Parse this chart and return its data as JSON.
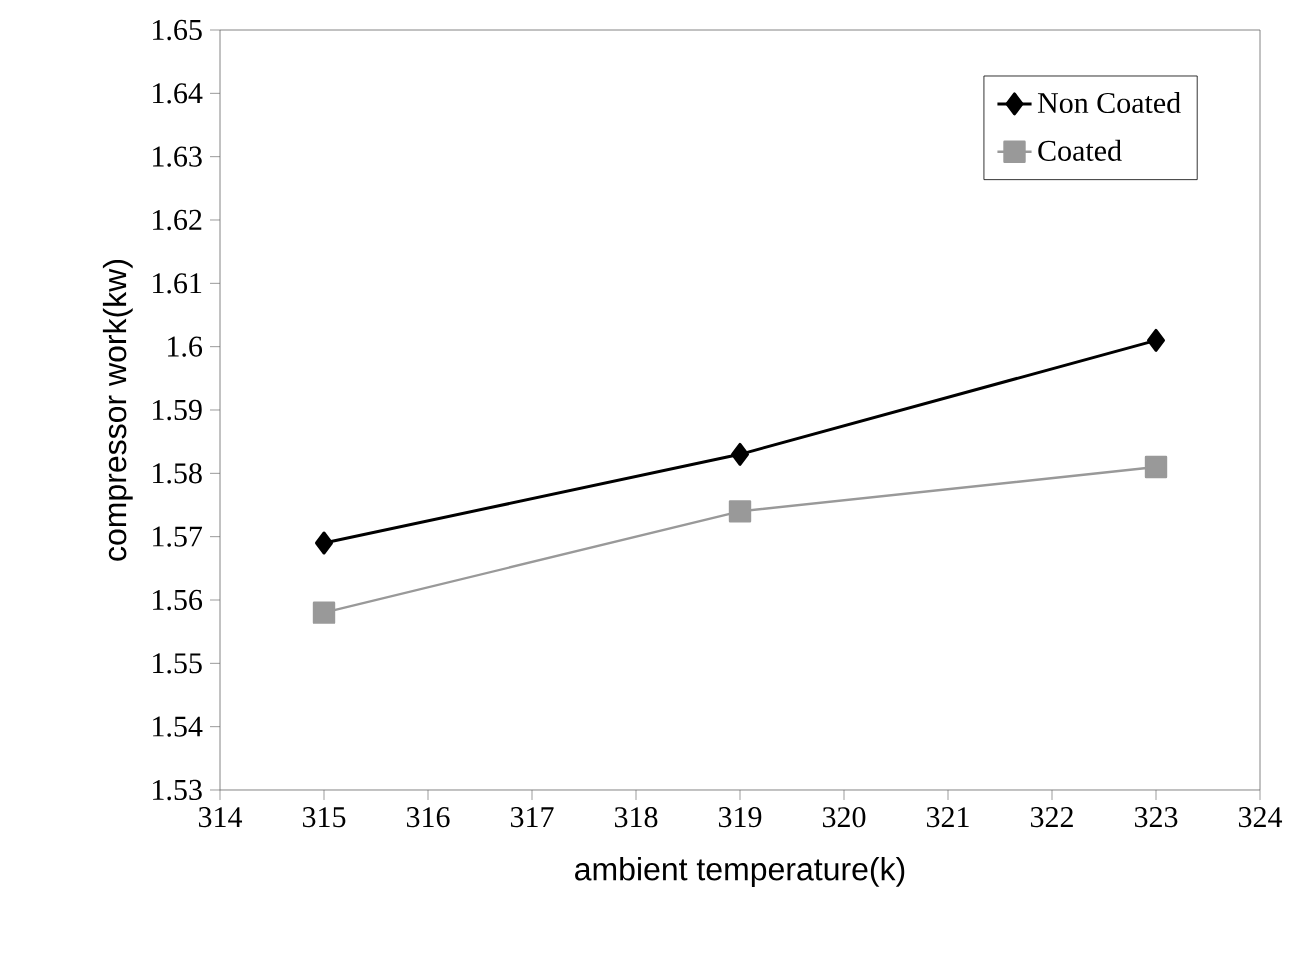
{
  "chart_data": {
    "type": "line",
    "xlabel": "ambient temperature(k)",
    "ylabel": "compressor work(kw)",
    "x": [
      315,
      319,
      323
    ],
    "series": [
      {
        "name": "Non Coated",
        "color": "#000000",
        "values": [
          1.569,
          1.583,
          1.601
        ],
        "marker": "diamond"
      },
      {
        "name": "Coated",
        "color": "#999999",
        "values": [
          1.558,
          1.574,
          1.581
        ],
        "marker": "square"
      }
    ],
    "xlim": [
      314,
      324
    ],
    "xticks": [
      314,
      315,
      316,
      317,
      318,
      319,
      320,
      321,
      322,
      323,
      324
    ],
    "ylim": [
      1.53,
      1.65
    ],
    "yticks": [
      1.53,
      1.54,
      1.55,
      1.56,
      1.57,
      1.58,
      1.59,
      {
        "value": 1.6,
        "label": "1.6"
      },
      1.61,
      1.62,
      1.63,
      1.64,
      1.65
    ],
    "legend": "top right",
    "grid": false,
    "line_style": "solid"
  }
}
